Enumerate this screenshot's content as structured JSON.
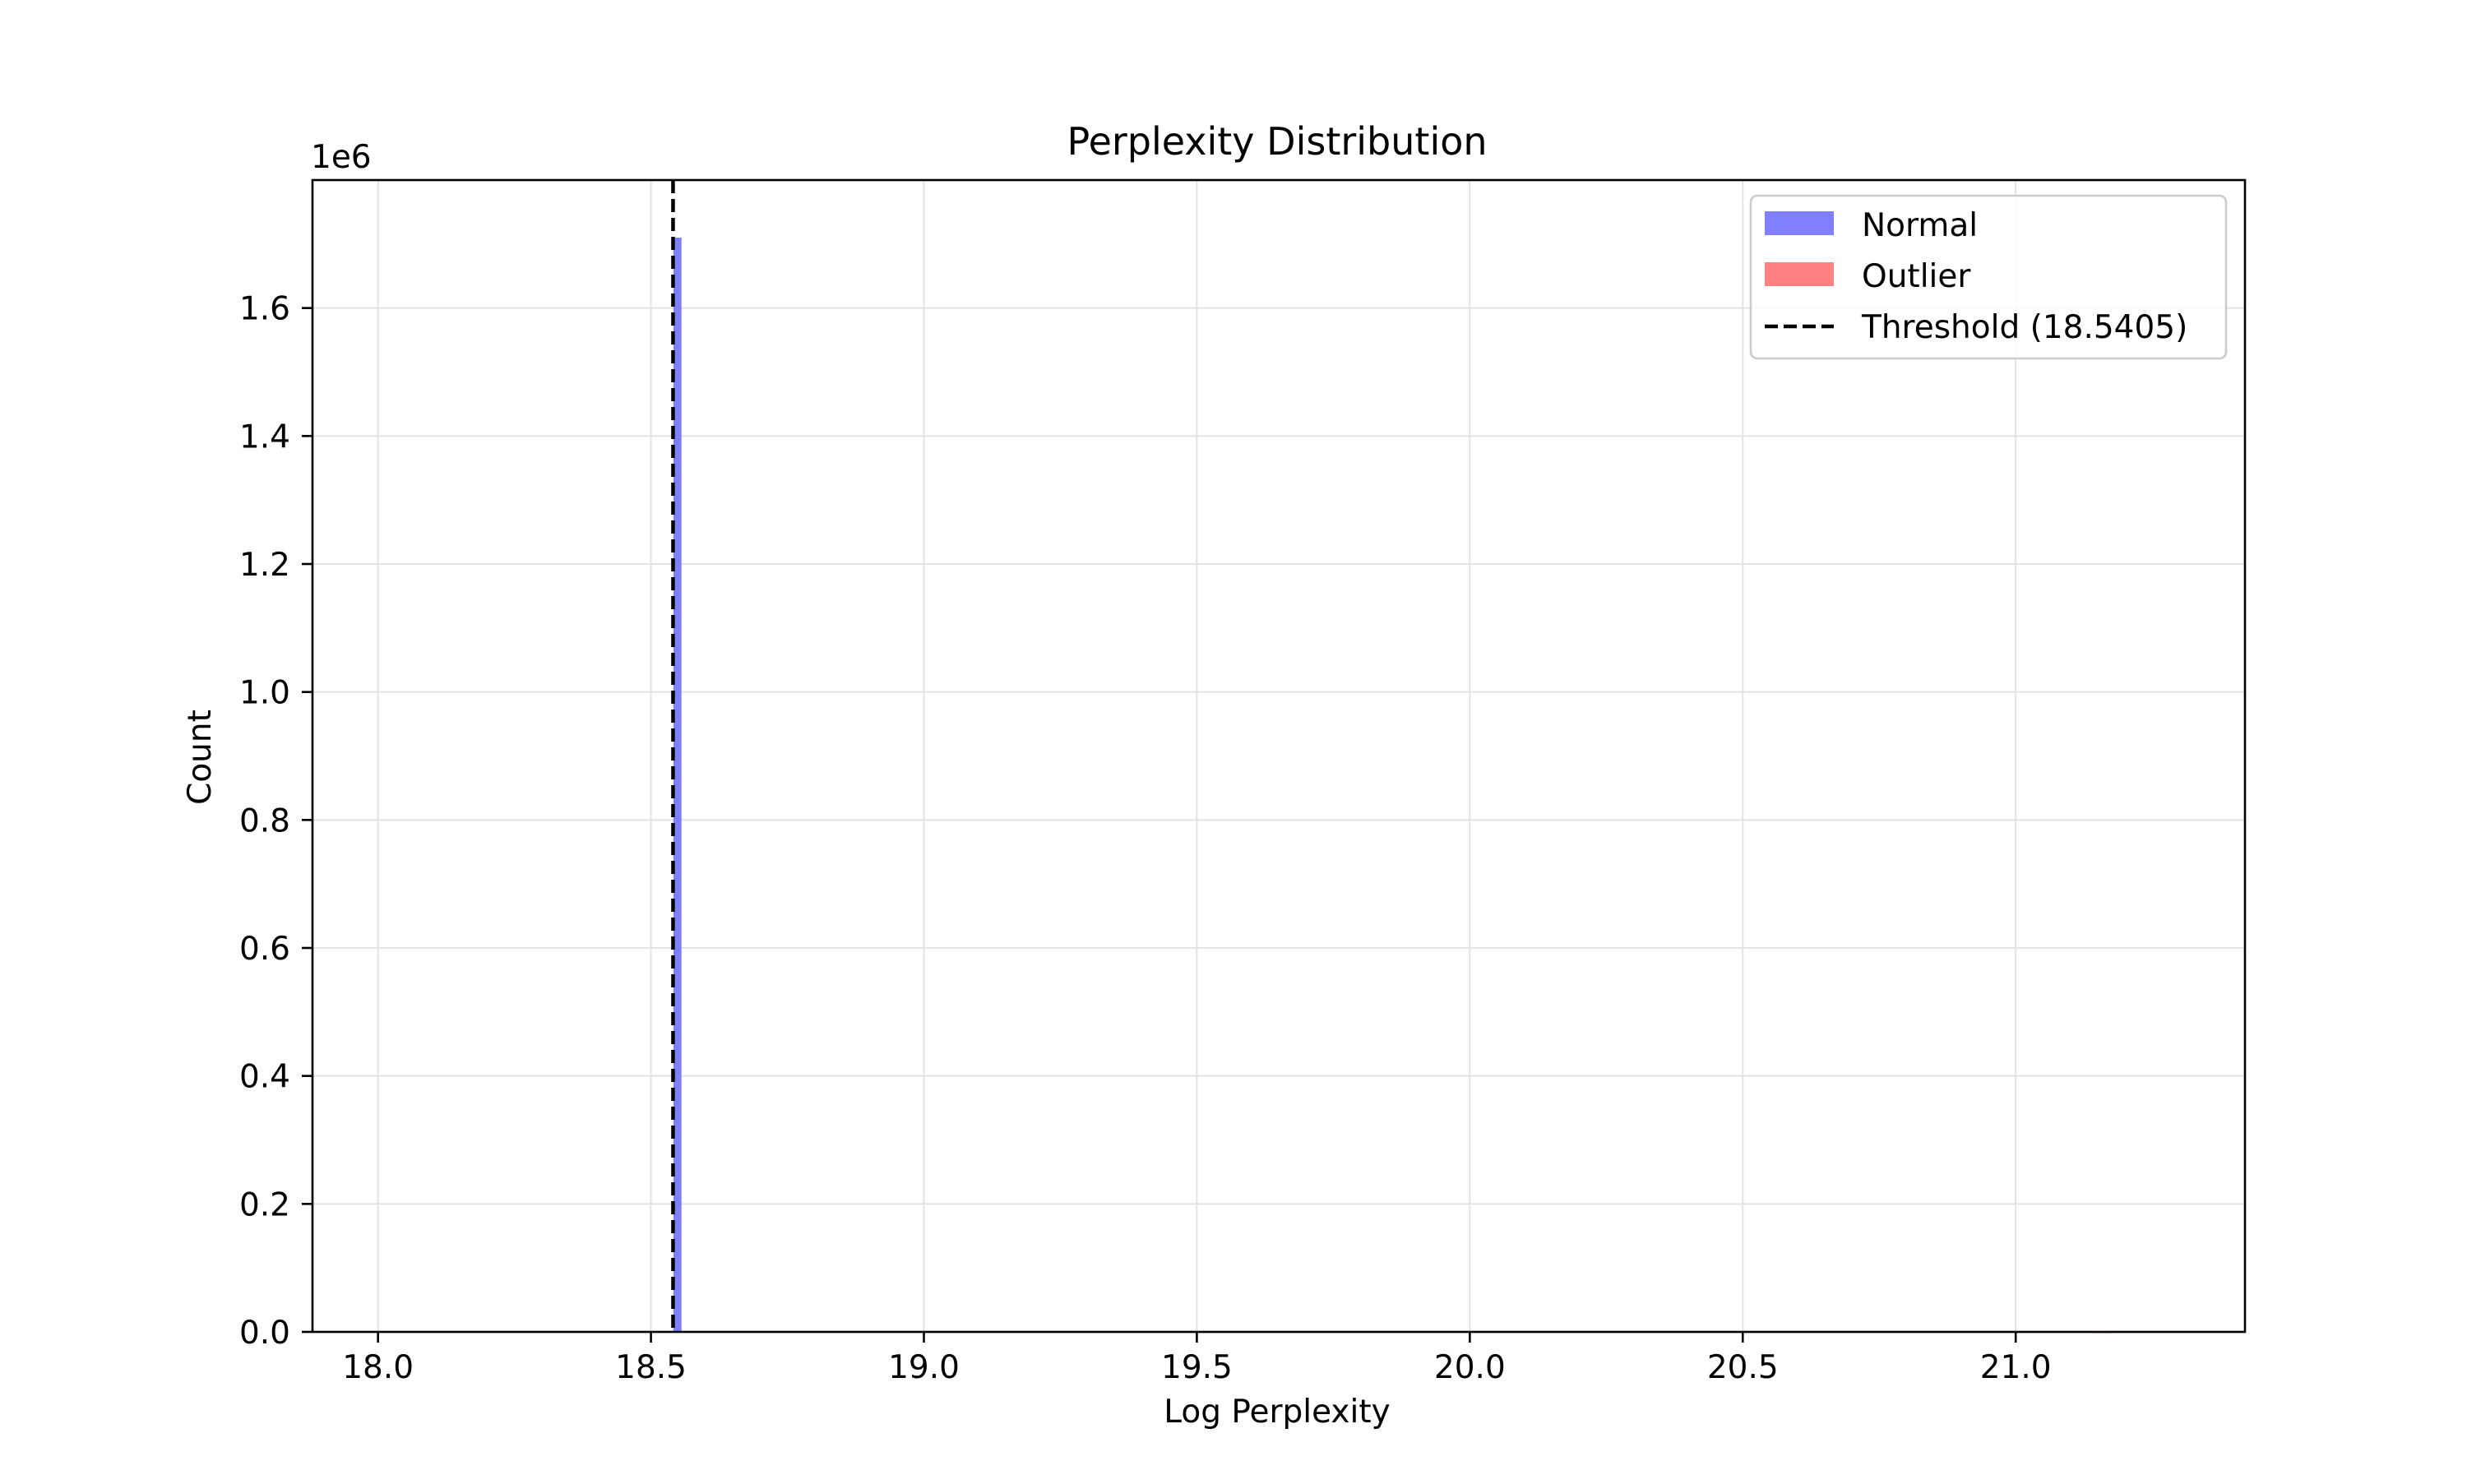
{
  "chart_data": {
    "type": "bar",
    "title": "Perplexity Distribution",
    "xlabel": "Log Perplexity",
    "ylabel": "Count",
    "y_scale_label": "1e6",
    "xlim": [
      17.88,
      21.42
    ],
    "ylim": [
      0,
      1.8
    ],
    "x_ticks": [
      18.0,
      18.5,
      19.0,
      19.5,
      20.0,
      20.5,
      21.0
    ],
    "x_tick_labels": [
      "18.0",
      "18.5",
      "19.0",
      "19.5",
      "20.0",
      "20.5",
      "21.0"
    ],
    "y_ticks": [
      0.0,
      0.2,
      0.4,
      0.6,
      0.8,
      1.0,
      1.2,
      1.4,
      1.6
    ],
    "y_tick_labels": [
      "0.0",
      "0.2",
      "0.4",
      "0.6",
      "0.8",
      "1.0",
      "1.2",
      "1.4",
      "1.6"
    ],
    "grid": true,
    "legend_position": "top-right",
    "series": [
      {
        "name": "Normal",
        "color": "#8080ff",
        "bins": [
          {
            "x0": 18.541,
            "x1": 18.556,
            "value": 1.71
          }
        ]
      },
      {
        "name": "Outlier",
        "color": "#ff8080",
        "bins": [
          {
            "x0": 21.14,
            "x1": 21.18,
            "value": 0.0
          }
        ]
      }
    ],
    "threshold": {
      "label": "Threshold (18.5405)",
      "value": 18.5405,
      "color": "#000000",
      "style": "dashed"
    }
  }
}
